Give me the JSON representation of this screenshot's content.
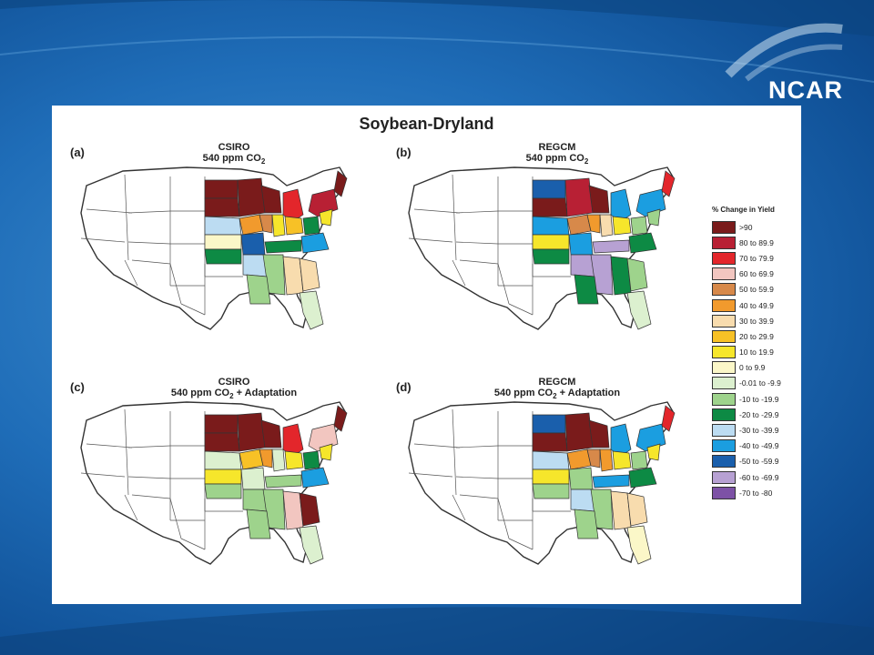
{
  "logo": "NCAR",
  "figure_title": "Soybean-Dryland",
  "panels": [
    {
      "label": "(a)",
      "model": "CSIRO",
      "scenario_pre": "540 ppm CO",
      "sub": "2",
      "scenario_post": "",
      "states": {
        "A": "c1",
        "B": "c1",
        "C": "c1",
        "D": "c1",
        "E": "c3",
        "F": "c2",
        "G": "c1",
        "H": "c6",
        "I": "c5",
        "J": "c9",
        "K": "c8",
        "L": "c13",
        "M": "c14",
        "N": "c10",
        "O": "c13",
        "P": "c16",
        "Q": "c14",
        "R": "c13",
        "S": "c12",
        "T": "c7",
        "U": "c7",
        "V": "c15",
        "W": "c9",
        "X": "c12",
        "Y": "c11"
      }
    },
    {
      "label": "(b)",
      "model": "REGCM",
      "scenario_pre": "540 ppm CO",
      "sub": "2",
      "scenario_post": "",
      "states": {
        "A": "c16",
        "B": "c1",
        "C": "c2",
        "D": "c1",
        "E": "c15",
        "F": "c15",
        "G": "c3",
        "H": "c5",
        "I": "c6",
        "J": "c7",
        "K": "c9",
        "L": "c12",
        "M": "c15",
        "N": "c9",
        "O": "c13",
        "P": "c15",
        "Q": "c17",
        "R": "c17",
        "S": "c17",
        "T": "c13",
        "U": "c12",
        "V": "c13",
        "W": "c12",
        "X": "c13",
        "Y": "c11"
      }
    },
    {
      "label": "(c)",
      "model": "CSIRO",
      "scenario_pre": "540 ppm CO",
      "sub": "2",
      "scenario_post": " + Adaptation",
      "states": {
        "A": "c1",
        "B": "c1",
        "C": "c1",
        "D": "c1",
        "E": "c3",
        "F": "c4",
        "G": "c1",
        "H": "c8",
        "I": "c6",
        "J": "c11",
        "K": "c9",
        "L": "c13",
        "M": "c11",
        "N": "c9",
        "O": "c12",
        "P": "c11",
        "Q": "c12",
        "R": "c12",
        "S": "c12",
        "T": "c4",
        "U": "c1",
        "V": "c15",
        "W": "c9",
        "X": "c12",
        "Y": "c11"
      }
    },
    {
      "label": "(d)",
      "model": "REGCM",
      "scenario_pre": "540 ppm CO",
      "sub": "2",
      "scenario_post": " + Adaptation",
      "states": {
        "A": "c16",
        "B": "c1",
        "C": "c1",
        "D": "c1",
        "E": "c15",
        "F": "c15",
        "G": "c3",
        "H": "c6",
        "I": "c5",
        "J": "c6",
        "K": "c9",
        "L": "c12",
        "M": "c14",
        "N": "c9",
        "O": "c12",
        "P": "c12",
        "Q": "c14",
        "R": "c15",
        "S": "c12",
        "T": "c7",
        "U": "c7",
        "V": "c13",
        "W": "c9",
        "X": "c12",
        "Y": "c10"
      }
    }
  ],
  "legend": {
    "title": "% Change in Yield",
    "items": [
      {
        "label": ">90",
        "color": "#7a1b1b"
      },
      {
        "label": "80 to 89.9",
        "color": "#b82034"
      },
      {
        "label": "70 to 79.9",
        "color": "#e3262b"
      },
      {
        "label": "60 to 69.9",
        "color": "#f2c6c0"
      },
      {
        "label": "50 to 59.9",
        "color": "#d7894a"
      },
      {
        "label": "40 to 49.9",
        "color": "#f19a2d"
      },
      {
        "label": "30 to 39.9",
        "color": "#f8dcae"
      },
      {
        "label": "20 to 29.9",
        "color": "#f7c126"
      },
      {
        "label": "10 to 19.9",
        "color": "#f6e62b"
      },
      {
        "label": "0 to 9.9",
        "color": "#fbf7c8"
      },
      {
        "label": "-0.01 to -9.9",
        "color": "#dcf0cf"
      },
      {
        "label": "-10 to -19.9",
        "color": "#9ed38c"
      },
      {
        "label": "-20 to -29.9",
        "color": "#0d8a44"
      },
      {
        "label": "-30 to -39.9",
        "color": "#bcdcf2"
      },
      {
        "label": "-40 to -49.9",
        "color": "#1b9ee0"
      },
      {
        "label": "-50 to -59.9",
        "color": "#1a5fac"
      },
      {
        "label": "-60 to -69.9",
        "color": "#b7a1d3"
      },
      {
        "label": "-70 to -80",
        "color": "#7d52a6"
      }
    ]
  }
}
